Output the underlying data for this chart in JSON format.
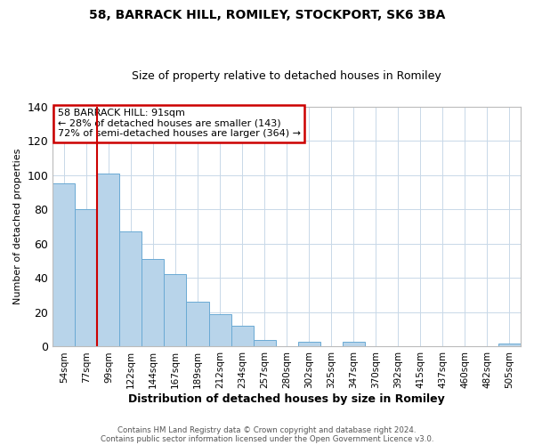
{
  "title": "58, BARRACK HILL, ROMILEY, STOCKPORT, SK6 3BA",
  "subtitle": "Size of property relative to detached houses in Romiley",
  "xlabel": "Distribution of detached houses by size in Romiley",
  "ylabel": "Number of detached properties",
  "bar_labels": [
    "54sqm",
    "77sqm",
    "99sqm",
    "122sqm",
    "144sqm",
    "167sqm",
    "189sqm",
    "212sqm",
    "234sqm",
    "257sqm",
    "280sqm",
    "302sqm",
    "325sqm",
    "347sqm",
    "370sqm",
    "392sqm",
    "415sqm",
    "437sqm",
    "460sqm",
    "482sqm",
    "505sqm"
  ],
  "bar_values": [
    95,
    80,
    101,
    67,
    51,
    42,
    26,
    19,
    12,
    4,
    0,
    3,
    0,
    3,
    0,
    0,
    0,
    0,
    0,
    0,
    2
  ],
  "bar_color": "#b8d4ea",
  "bar_edge_color": "#6aaad4",
  "ylim": [
    0,
    140
  ],
  "yticks": [
    0,
    20,
    40,
    60,
    80,
    100,
    120,
    140
  ],
  "vline_x_idx": 2,
  "vline_color": "#cc0000",
  "annotation_title": "58 BARRACK HILL: 91sqm",
  "annotation_line1": "← 28% of detached houses are smaller (143)",
  "annotation_line2": "72% of semi-detached houses are larger (364) →",
  "annotation_box_color": "#cc0000",
  "footer_line1": "Contains HM Land Registry data © Crown copyright and database right 2024.",
  "footer_line2": "Contains public sector information licensed under the Open Government Licence v3.0.",
  "background_color": "#ffffff",
  "grid_color": "#c8d8e8"
}
